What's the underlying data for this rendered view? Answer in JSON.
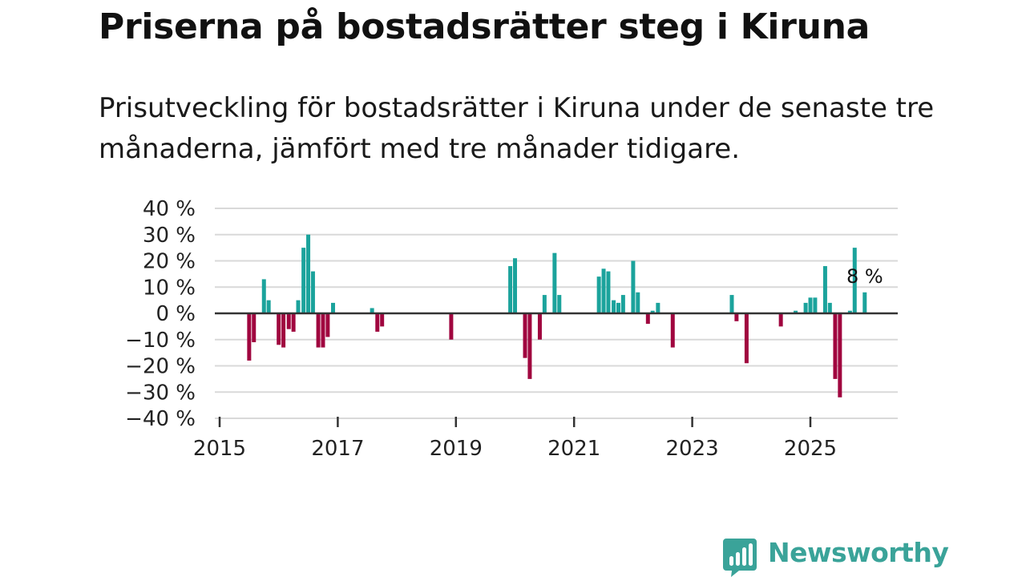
{
  "header": {
    "title": "Priserna på bostadsrätter steg i Kiruna",
    "subtitle": "Prisutveckling för bostadsrätter i Kiruna under de senaste tre månaderna, jämfört med tre månader tidigare."
  },
  "brand": {
    "name": "Newsworthy",
    "icon": "newsworthy-chart-bubble-icon",
    "color": "#3aa399"
  },
  "colors": {
    "positive": "#1ba39c",
    "negative": "#a0063f",
    "grid": "#d9d9d9",
    "baseline": "#333333"
  },
  "chart_data": {
    "type": "bar",
    "title": "Priserna på bostadsrätter steg i Kiruna",
    "xlabel": "",
    "ylabel": "",
    "unit": "%",
    "ylim": [
      -40,
      40
    ],
    "yticks": [
      40,
      30,
      20,
      10,
      0,
      -10,
      -20,
      -30,
      -40
    ],
    "ytick_labels": [
      "40 %",
      "30 %",
      "20 %",
      "10 %",
      "0 %",
      "−10 %",
      "−20 %",
      "−30 %",
      "−40 %"
    ],
    "xlim": [
      2015.0,
      2026.45
    ],
    "xticks": [
      2015,
      2017,
      2019,
      2021,
      2023,
      2025
    ],
    "xtick_labels": [
      "2015",
      "2017",
      "2019",
      "2021",
      "2023",
      "2025"
    ],
    "grid": true,
    "annotation": {
      "text": "8 %",
      "x": 2025.92,
      "value": 8
    },
    "series": [
      {
        "name": "Prisutveckling",
        "points": [
          {
            "x": 2015.5,
            "value": -18
          },
          {
            "x": 2015.58,
            "value": -11
          },
          {
            "x": 2015.75,
            "value": 13
          },
          {
            "x": 2015.83,
            "value": 5
          },
          {
            "x": 2016.0,
            "value": -12
          },
          {
            "x": 2016.08,
            "value": -13
          },
          {
            "x": 2016.17,
            "value": -6
          },
          {
            "x": 2016.25,
            "value": -7
          },
          {
            "x": 2016.33,
            "value": 5
          },
          {
            "x": 2016.42,
            "value": 25
          },
          {
            "x": 2016.5,
            "value": 30
          },
          {
            "x": 2016.58,
            "value": 16
          },
          {
            "x": 2016.67,
            "value": -13
          },
          {
            "x": 2016.75,
            "value": -13
          },
          {
            "x": 2016.83,
            "value": -9
          },
          {
            "x": 2016.92,
            "value": 4
          },
          {
            "x": 2017.58,
            "value": 2
          },
          {
            "x": 2017.67,
            "value": -7
          },
          {
            "x": 2017.75,
            "value": -5
          },
          {
            "x": 2018.92,
            "value": -10
          },
          {
            "x": 2019.92,
            "value": 18
          },
          {
            "x": 2020.0,
            "value": 21
          },
          {
            "x": 2020.17,
            "value": -17
          },
          {
            "x": 2020.25,
            "value": -25
          },
          {
            "x": 2020.42,
            "value": -10
          },
          {
            "x": 2020.5,
            "value": 7
          },
          {
            "x": 2020.67,
            "value": 23
          },
          {
            "x": 2020.75,
            "value": 7
          },
          {
            "x": 2021.42,
            "value": 14
          },
          {
            "x": 2021.5,
            "value": 17
          },
          {
            "x": 2021.58,
            "value": 16
          },
          {
            "x": 2021.67,
            "value": 5
          },
          {
            "x": 2021.75,
            "value": 4
          },
          {
            "x": 2021.83,
            "value": 7
          },
          {
            "x": 2022.0,
            "value": 20
          },
          {
            "x": 2022.08,
            "value": 8
          },
          {
            "x": 2022.25,
            "value": -4
          },
          {
            "x": 2022.33,
            "value": 1
          },
          {
            "x": 2022.42,
            "value": 4
          },
          {
            "x": 2022.67,
            "value": -13
          },
          {
            "x": 2023.67,
            "value": 7
          },
          {
            "x": 2023.75,
            "value": -3
          },
          {
            "x": 2023.92,
            "value": -19
          },
          {
            "x": 2024.5,
            "value": -5
          },
          {
            "x": 2024.75,
            "value": 1
          },
          {
            "x": 2024.92,
            "value": 4
          },
          {
            "x": 2025.0,
            "value": 6
          },
          {
            "x": 2025.08,
            "value": 6
          },
          {
            "x": 2025.25,
            "value": 18
          },
          {
            "x": 2025.33,
            "value": 4
          },
          {
            "x": 2025.42,
            "value": -25
          },
          {
            "x": 2025.5,
            "value": -32
          },
          {
            "x": 2025.67,
            "value": 1
          },
          {
            "x": 2025.75,
            "value": 25
          },
          {
            "x": 2025.92,
            "value": 8
          }
        ]
      }
    ]
  }
}
